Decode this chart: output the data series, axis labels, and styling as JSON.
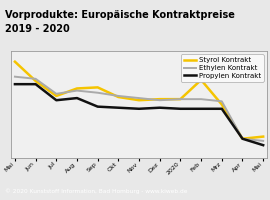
{
  "title_line1": "Vorprodukte: Europäische Kontraktpreise",
  "title_line2": "2019 - 2020",
  "title_color": "#000000",
  "title_bg": "#f5c400",
  "footer": "© 2020 Kunststoff Information, Bad Homburg - www.kiweb.de",
  "x_labels": [
    "Mai",
    "Jun",
    "Jul",
    "Aug",
    "Sep",
    "Okt",
    "Nov",
    "Dez",
    "2020",
    "Feb",
    "Mrz",
    "Apr",
    "Mai"
  ],
  "series": [
    {
      "name": "Styrol Kontrakt",
      "color": "#f5c400",
      "linewidth": 1.8,
      "values": [
        1.0,
        0.82,
        0.68,
        0.75,
        0.76,
        0.67,
        0.64,
        0.65,
        0.65,
        0.83,
        0.6,
        0.28,
        0.3
      ]
    },
    {
      "name": "Ethylen Kontrakt",
      "color": "#aaaaaa",
      "linewidth": 1.4,
      "values": [
        0.86,
        0.84,
        0.7,
        0.73,
        0.71,
        0.68,
        0.66,
        0.64,
        0.65,
        0.65,
        0.63,
        0.28,
        0.26
      ]
    },
    {
      "name": "Propylen Kontrakt",
      "color": "#111111",
      "linewidth": 1.8,
      "values": [
        0.79,
        0.79,
        0.64,
        0.66,
        0.58,
        0.57,
        0.56,
        0.57,
        0.56,
        0.56,
        0.56,
        0.28,
        0.22
      ]
    }
  ],
  "ylim": [
    0.1,
    1.1
  ],
  "legend_fontsize": 5.0,
  "bg_color": "#e8e8e8",
  "plot_bg": "#f0f0f0",
  "plot_border": "#999999",
  "footer_bg": "#888888",
  "footer_color": "#ffffff",
  "footer_fontsize": 4.2,
  "title_fontsize": 7.0,
  "tick_fontsize": 4.5
}
